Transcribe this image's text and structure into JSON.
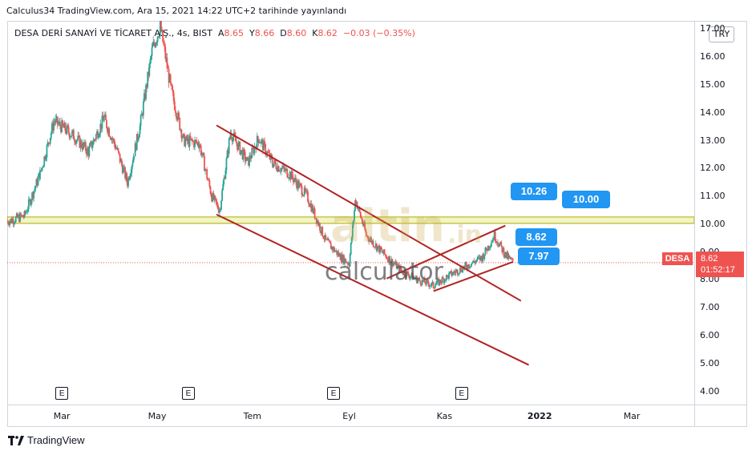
{
  "header": {
    "publish_line": "Calculus34 TradingView.com, Ara 15, 2021 14:22 UTC+2 tarihinde yayınlandı"
  },
  "symbol": {
    "name": "DESA DERİ SANAYİ VE TİCARET A.Ş., 4s, BIST",
    "o_label": "A",
    "o_value": "8.65",
    "h_label": "Y",
    "h_value": "8.66",
    "l_label": "D",
    "l_value": "8.60",
    "c_label": "K",
    "c_value": "8.62",
    "change": "−0.03 (−0.35%)"
  },
  "currency": "TRY",
  "price_tag": {
    "ticker": "DESA",
    "price": "8.62",
    "countdown": "01:52:17"
  },
  "callouts": {
    "c1": "10.26",
    "c2": "10.00",
    "c3": "8.62",
    "c4": "7.97"
  },
  "earnings_marker": "E",
  "watermark": {
    "brand": "altin",
    "tld": ".in",
    "text": "calculator"
  },
  "footer": {
    "brand": "TradingView"
  },
  "colors": {
    "up": "#26a69a",
    "down": "#ef5350",
    "trendline": "#b22222",
    "zone": "#d4e157",
    "callout": "#2196f3"
  },
  "chart_data": {
    "type": "candlestick",
    "y_ticks": [
      "4.00",
      "5.00",
      "6.00",
      "7.00",
      "8.00",
      "9.00",
      "10.00",
      "11.00",
      "12.00",
      "13.00",
      "14.00",
      "15.00",
      "16.00",
      "17.00"
    ],
    "x_ticks": [
      {
        "label": "Mar",
        "bold": false
      },
      {
        "label": "May",
        "bold": false
      },
      {
        "label": "Tem",
        "bold": false
      },
      {
        "label": "Eyl",
        "bold": false
      },
      {
        "label": "Kas",
        "bold": false
      },
      {
        "label": "2022",
        "bold": true
      },
      {
        "label": "Mar",
        "bold": false
      }
    ],
    "ylim": [
      3.5,
      17.3
    ],
    "x_range": [
      "2021-01-25",
      "2022-04-10"
    ],
    "support_zone": [
      10.03,
      10.26
    ],
    "last_price": 8.62,
    "price_path": [
      [
        "2021-01-25",
        10.1
      ],
      [
        "2021-02-05",
        10.3
      ],
      [
        "2021-02-15",
        11.8
      ],
      [
        "2021-02-24",
        13.7
      ],
      [
        "2021-03-08",
        13.2
      ],
      [
        "2021-03-18",
        12.6
      ],
      [
        "2021-03-28",
        13.8
      ],
      [
        "2021-04-05",
        12.7
      ],
      [
        "2021-04-12",
        11.5
      ],
      [
        "2021-04-20",
        13.5
      ],
      [
        "2021-04-28",
        16.3
      ],
      [
        "2021-05-03",
        17.1
      ],
      [
        "2021-05-10",
        14.8
      ],
      [
        "2021-05-18",
        13.0
      ],
      [
        "2021-05-28",
        12.9
      ],
      [
        "2021-06-05",
        11.0
      ],
      [
        "2021-06-10",
        10.5
      ],
      [
        "2021-06-17",
        13.3
      ],
      [
        "2021-06-28",
        12.2
      ],
      [
        "2021-07-05",
        13.1
      ],
      [
        "2021-07-14",
        12.2
      ],
      [
        "2021-07-25",
        11.8
      ],
      [
        "2021-08-05",
        11.0
      ],
      [
        "2021-08-17",
        9.4
      ],
      [
        "2021-08-27",
        8.8
      ],
      [
        "2021-09-01",
        8.6
      ],
      [
        "2021-09-05",
        10.9
      ],
      [
        "2021-09-12",
        9.6
      ],
      [
        "2021-09-22",
        9.0
      ],
      [
        "2021-10-05",
        8.3
      ],
      [
        "2021-10-15",
        8.0
      ],
      [
        "2021-10-25",
        7.8
      ],
      [
        "2021-11-05",
        8.2
      ],
      [
        "2021-11-15",
        8.5
      ],
      [
        "2021-11-25",
        8.8
      ],
      [
        "2021-12-03",
        9.6
      ],
      [
        "2021-12-10",
        8.9
      ],
      [
        "2021-12-15",
        8.62
      ]
    ],
    "trendlines": [
      {
        "from": [
          "2021-06-08",
          13.55
        ],
        "to": [
          "2021-12-20",
          7.25
        ]
      },
      {
        "from": [
          "2021-06-08",
          10.35
        ],
        "to": [
          "2021-12-25",
          4.95
        ]
      },
      {
        "from": [
          "2021-09-25",
          8.05
        ],
        "to": [
          "2021-12-10",
          9.95
        ]
      },
      {
        "from": [
          "2021-10-25",
          7.6
        ],
        "to": [
          "2021-12-15",
          8.65
        ]
      }
    ],
    "earnings_dates": [
      "2021-03-01",
      "2021-05-21",
      "2021-08-22",
      "2021-11-12"
    ]
  }
}
